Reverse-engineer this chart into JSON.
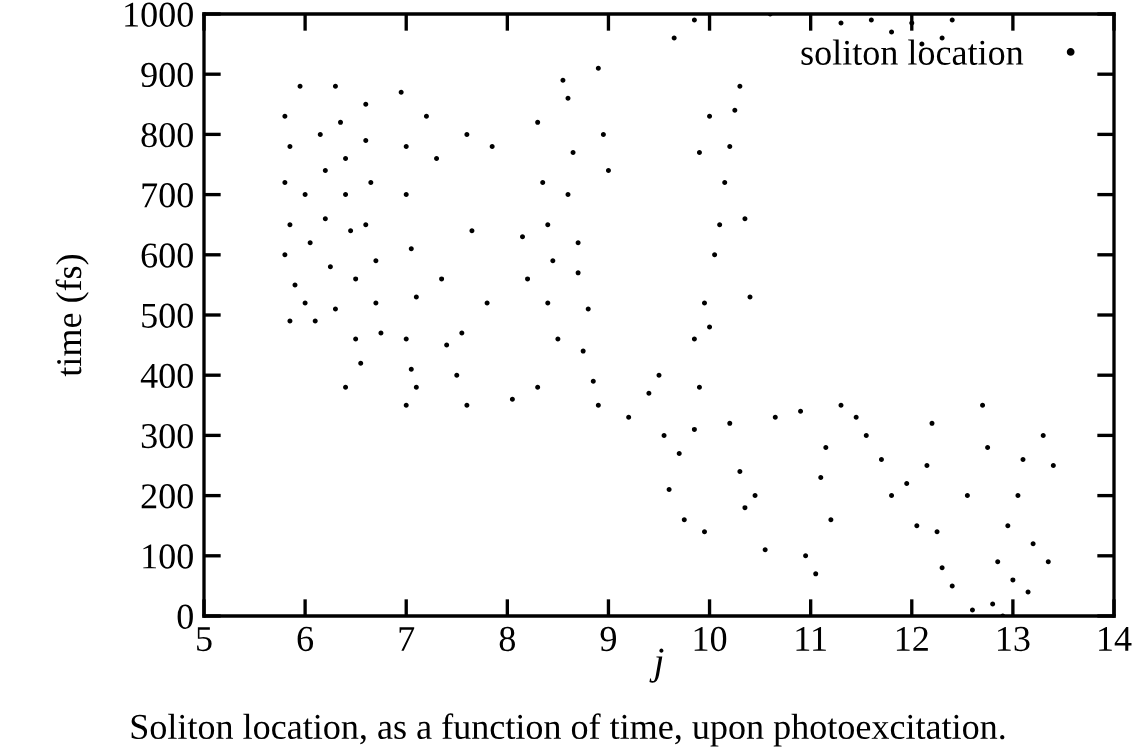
{
  "chart_data": {
    "type": "scatter",
    "xlabel": "j",
    "ylabel": "time (fs)",
    "annotations": [
      "Soliton location, as a function of time, upon photoexcitation."
    ],
    "xlim": [
      5,
      14
    ],
    "xticks": [
      5,
      6,
      7,
      8,
      9,
      10,
      11,
      12,
      13,
      14
    ],
    "ylim": [
      0,
      1000
    ],
    "yticks": [
      0,
      100,
      200,
      300,
      400,
      500,
      600,
      700,
      800,
      900,
      1000
    ],
    "legend": "top right",
    "marker": "circle",
    "grid": false,
    "series": [
      {
        "name": "soliton location",
        "color": "#000000",
        "x": [
          5.8,
          5.85,
          5.8,
          5.85,
          5.8,
          5.9,
          5.85,
          5.95,
          6.0,
          6.05,
          6.0,
          6.1,
          6.15,
          6.2,
          6.2,
          6.25,
          6.3,
          6.3,
          6.35,
          6.4,
          6.4,
          6.45,
          6.5,
          6.5,
          6.4,
          6.55,
          6.6,
          6.6,
          6.65,
          6.6,
          6.7,
          6.7,
          6.75,
          6.95,
          7.0,
          7.0,
          7.05,
          7.1,
          7.0,
          7.05,
          7.0,
          7.1,
          7.2,
          7.3,
          7.35,
          7.4,
          7.5,
          7.55,
          7.6,
          7.65,
          7.8,
          7.85,
          7.6,
          8.05,
          8.15,
          8.2,
          8.3,
          8.35,
          8.4,
          8.45,
          8.4,
          8.5,
          8.55,
          8.6,
          8.65,
          8.6,
          8.7,
          8.7,
          8.8,
          8.75,
          8.85,
          8.9,
          8.95,
          9.0,
          8.3,
          8.9,
          9.2,
          9.4,
          9.5,
          9.55,
          9.6,
          9.7,
          9.75,
          9.85,
          9.95,
          9.9,
          9.85,
          9.95,
          10.0,
          10.05,
          10.1,
          10.15,
          10.2,
          10.25,
          10.3,
          10.35,
          10.4,
          10.0,
          9.65,
          9.85,
          9.9,
          10.2,
          10.3,
          10.35,
          10.45,
          10.55,
          10.65,
          10.9,
          10.95,
          11.05,
          11.1,
          11.15,
          11.2,
          11.3,
          11.45,
          11.55,
          11.7,
          11.8,
          11.95,
          12.05,
          12.15,
          12.25,
          12.3,
          12.4,
          12.2,
          12.55,
          12.6,
          12.7,
          12.75,
          12.8,
          12.85,
          12.95,
          13.0,
          13.05,
          13.1,
          13.15,
          13.2,
          13.3,
          13.35,
          13.4,
          12.9,
          10.6,
          11.3,
          11.6,
          11.8,
          12.0,
          12.3,
          12.4,
          12.1
        ],
        "values": [
          830,
          780,
          720,
          650,
          600,
          550,
          490,
          880,
          700,
          620,
          520,
          490,
          800,
          740,
          660,
          580,
          510,
          880,
          820,
          760,
          700,
          640,
          560,
          460,
          380,
          420,
          850,
          790,
          720,
          650,
          590,
          520,
          470,
          870,
          780,
          700,
          610,
          530,
          460,
          410,
          350,
          380,
          830,
          760,
          560,
          450,
          400,
          470,
          350,
          640,
          520,
          780,
          800,
          360,
          630,
          560,
          820,
          720,
          650,
          590,
          520,
          460,
          890,
          860,
          770,
          700,
          620,
          570,
          510,
          440,
          390,
          350,
          800,
          740,
          380,
          910,
          330,
          370,
          400,
          300,
          210,
          270,
          160,
          310,
          140,
          380,
          460,
          520,
          480,
          600,
          650,
          720,
          780,
          840,
          880,
          660,
          530,
          830,
          960,
          990,
          770,
          320,
          240,
          180,
          200,
          110,
          330,
          340,
          100,
          70,
          230,
          280,
          160,
          350,
          330,
          300,
          260,
          200,
          220,
          150,
          250,
          140,
          80,
          50,
          320,
          200,
          10,
          350,
          280,
          20,
          90,
          150,
          60,
          200,
          260,
          40,
          120,
          300,
          90,
          250,
          0,
          1000,
          985,
          990,
          970,
          985,
          960,
          990,
          950
        ]
      }
    ]
  }
}
